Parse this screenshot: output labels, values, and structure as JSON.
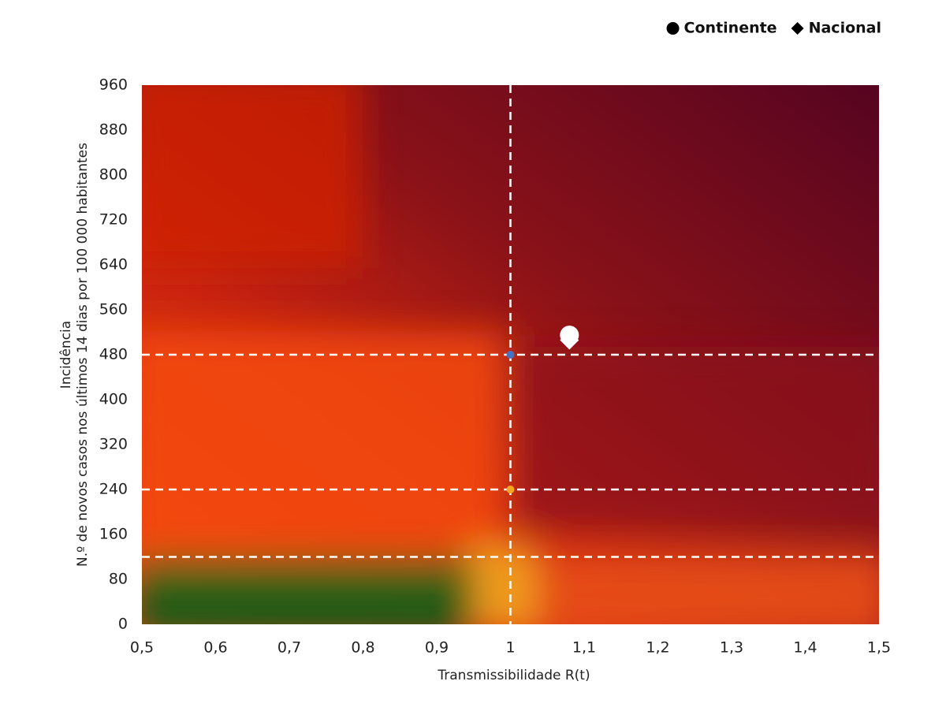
{
  "chart_data": {
    "type": "scatter",
    "xlabel": "Transmissibilidade R(t)",
    "ylabel": [
      "Incidência",
      "N.º de novos casos nos últimos 14 dias por 100 000 habitantes"
    ],
    "xlim": [
      0.5,
      1.5
    ],
    "ylim": [
      0,
      960
    ],
    "xticks": [
      {
        "value": 0.5,
        "label": "0,5"
      },
      {
        "value": 0.6,
        "label": "0,6"
      },
      {
        "value": 0.7,
        "label": "0,7"
      },
      {
        "value": 0.8,
        "label": "0,8"
      },
      {
        "value": 0.9,
        "label": "0,9"
      },
      1,
      {
        "value": 1.1,
        "label": "1,1"
      },
      {
        "value": 1.2,
        "label": "1,2"
      },
      {
        "value": 1.3,
        "label": "1,3"
      },
      {
        "value": 1.4,
        "label": "1,4"
      },
      {
        "value": 1.5,
        "label": "1,5"
      }
    ],
    "yticks": [
      0,
      80,
      160,
      240,
      320,
      400,
      480,
      560,
      640,
      720,
      800,
      880,
      960
    ],
    "reference_lines": {
      "x": [
        1
      ],
      "y": [
        480,
        240,
        120
      ],
      "color": "#ffffff"
    },
    "legend": "top-right",
    "legend_color": "#000000",
    "series": [
      {
        "name": "Continente",
        "marker": "circle",
        "color": "#ffffff",
        "x": [
          1.08
        ],
        "values": [
          515
        ]
      },
      {
        "name": "Nacional",
        "marker": "diamond",
        "color": "#ffffff",
        "x": [
          1.08
        ],
        "values": [
          506
        ]
      },
      {
        "marker": "circle",
        "color": "#4472c4",
        "x": [
          1
        ],
        "values": [
          480
        ]
      },
      {
        "marker": "circle",
        "color": "#f5a623",
        "x": [
          1
        ],
        "values": [
          240
        ]
      }
    ]
  }
}
